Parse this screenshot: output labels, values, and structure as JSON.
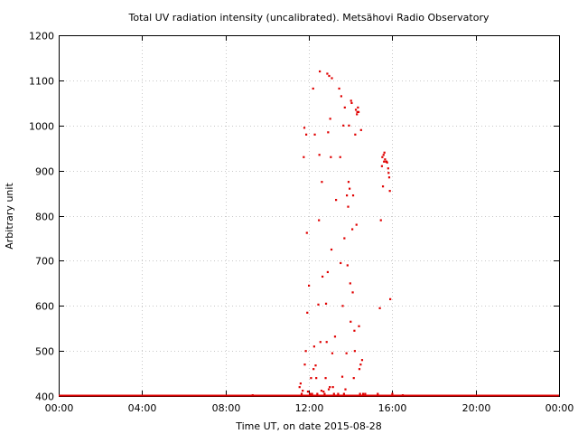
{
  "chart_data": {
    "type": "scatter",
    "title": "Total UV radiation intensity (uncalibrated). Metsähovi Radio Observatory",
    "xlabel": "Time UT, on date 2015-08-28",
    "ylabel": "Arbitrary unit",
    "xlim": [
      0,
      24
    ],
    "ylim": [
      400,
      1200
    ],
    "xticks": [
      0,
      4,
      8,
      12,
      16,
      20,
      24
    ],
    "xtick_labels": [
      "00:00",
      "04:00",
      "08:00",
      "12:00",
      "16:00",
      "20:00",
      "00:00"
    ],
    "yticks": [
      400,
      500,
      600,
      700,
      800,
      900,
      1000,
      1100,
      1200
    ],
    "ytick_labels": [
      "400",
      "500",
      "600",
      "700",
      "800",
      "900",
      "1000",
      "1100",
      "1200"
    ],
    "grid": true,
    "color": "#e00000",
    "baseline": {
      "y": 400,
      "x_from": 0,
      "x_to": 24
    },
    "series": [
      {
        "points": [
          [
            9.3,
            402
          ],
          [
            11.55,
            420
          ],
          [
            11.6,
            428
          ],
          [
            11.65,
            405
          ],
          [
            11.7,
            412
          ],
          [
            11.75,
            930
          ],
          [
            11.78,
            995
          ],
          [
            11.8,
            470
          ],
          [
            11.85,
            500
          ],
          [
            11.87,
            980
          ],
          [
            11.9,
            762
          ],
          [
            11.92,
            585
          ],
          [
            11.95,
            410
          ],
          [
            12.0,
            645
          ],
          [
            12.05,
            405
          ],
          [
            12.1,
            440
          ],
          [
            12.15,
            405
          ],
          [
            12.2,
            1082
          ],
          [
            12.22,
            460
          ],
          [
            12.25,
            510
          ],
          [
            12.28,
            980
          ],
          [
            12.32,
            468
          ],
          [
            12.35,
            440
          ],
          [
            12.4,
            405
          ],
          [
            12.45,
            603
          ],
          [
            12.48,
            790
          ],
          [
            12.5,
            935
          ],
          [
            12.52,
            1120
          ],
          [
            12.55,
            520
          ],
          [
            12.6,
            412
          ],
          [
            12.62,
            875
          ],
          [
            12.65,
            665
          ],
          [
            12.7,
            410
          ],
          [
            12.75,
            405
          ],
          [
            12.8,
            440
          ],
          [
            12.82,
            605
          ],
          [
            12.85,
            520
          ],
          [
            12.88,
            1115
          ],
          [
            12.9,
            675
          ],
          [
            12.92,
            985
          ],
          [
            12.95,
            415
          ],
          [
            12.97,
            1110
          ],
          [
            13.0,
            420
          ],
          [
            13.02,
            1015
          ],
          [
            13.05,
            930
          ],
          [
            13.08,
            725
          ],
          [
            13.1,
            1105
          ],
          [
            13.12,
            495
          ],
          [
            13.15,
            420
          ],
          [
            13.2,
            405
          ],
          [
            13.25,
            532
          ],
          [
            13.3,
            835
          ],
          [
            13.4,
            405
          ],
          [
            13.45,
            1082
          ],
          [
            13.5,
            930
          ],
          [
            13.52,
            695
          ],
          [
            13.55,
            1065
          ],
          [
            13.6,
            443
          ],
          [
            13.62,
            600
          ],
          [
            13.65,
            1000
          ],
          [
            13.68,
            405
          ],
          [
            13.7,
            750
          ],
          [
            13.72,
            1040
          ],
          [
            13.75,
            415
          ],
          [
            13.8,
            495
          ],
          [
            13.82,
            845
          ],
          [
            13.85,
            690
          ],
          [
            13.88,
            820
          ],
          [
            13.9,
            875
          ],
          [
            13.92,
            1000
          ],
          [
            13.95,
            860
          ],
          [
            13.98,
            650
          ],
          [
            14.0,
            565
          ],
          [
            14.02,
            1055
          ],
          [
            14.05,
            1050
          ],
          [
            14.08,
            770
          ],
          [
            14.1,
            630
          ],
          [
            14.12,
            845
          ],
          [
            14.15,
            440
          ],
          [
            14.18,
            545
          ],
          [
            14.2,
            500
          ],
          [
            14.22,
            980
          ],
          [
            14.25,
            1035
          ],
          [
            14.28,
            780
          ],
          [
            14.3,
            1025
          ],
          [
            14.32,
            1030
          ],
          [
            14.35,
            1040
          ],
          [
            14.38,
            1030
          ],
          [
            14.4,
            555
          ],
          [
            14.42,
            460
          ],
          [
            14.45,
            405
          ],
          [
            14.48,
            470
          ],
          [
            14.5,
            990
          ],
          [
            14.55,
            480
          ],
          [
            14.6,
            405
          ],
          [
            14.7,
            405
          ],
          [
            15.3,
            405
          ],
          [
            15.4,
            595
          ],
          [
            15.45,
            790
          ],
          [
            15.5,
            910
          ],
          [
            15.52,
            930
          ],
          [
            15.55,
            865
          ],
          [
            15.58,
            935
          ],
          [
            15.6,
            920
          ],
          [
            15.62,
            940
          ],
          [
            15.65,
            925
          ],
          [
            15.7,
            920
          ],
          [
            15.72,
            920
          ],
          [
            15.75,
            918
          ],
          [
            15.8,
            905
          ],
          [
            15.82,
            895
          ],
          [
            15.85,
            885
          ],
          [
            15.88,
            855
          ],
          [
            15.9,
            615
          ],
          [
            16.0,
            405
          ],
          [
            16.5,
            402
          ]
        ]
      }
    ]
  }
}
